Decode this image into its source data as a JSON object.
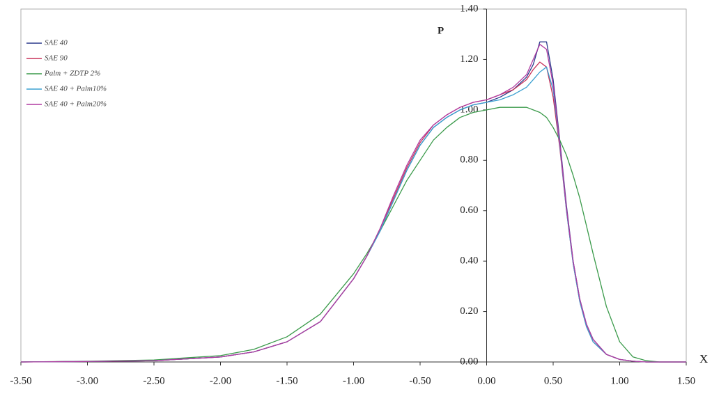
{
  "chart_data": {
    "type": "line",
    "x_label": "X",
    "y_label": "P",
    "xlim": [
      -3.5,
      1.5
    ],
    "ylim": [
      0,
      1.4
    ],
    "xticks": [
      {
        "value": -3.5,
        "label": "-3.50"
      },
      {
        "value": -3,
        "label": "-3.00"
      },
      {
        "value": -2.5,
        "label": "-2.50"
      },
      {
        "value": -2,
        "label": "-2.00"
      },
      {
        "value": -1.5,
        "label": "-1.50"
      },
      {
        "value": -1,
        "label": "-1.00"
      },
      {
        "value": -0.5,
        "label": "-0.50"
      },
      {
        "value": 0,
        "label": "0.00"
      },
      {
        "value": 0.5,
        "label": "0.50"
      },
      {
        "value": 1,
        "label": "1.00"
      },
      {
        "value": 1.5,
        "label": "1.50"
      }
    ],
    "yticks": [
      {
        "value": 0,
        "label": "0.00"
      },
      {
        "value": 0.2,
        "label": "0.20"
      },
      {
        "value": 0.4,
        "label": "0.40"
      },
      {
        "value": 0.6,
        "label": "0.60"
      },
      {
        "value": 0.8,
        "label": "0.80"
      },
      {
        "value": 1,
        "label": "1.00"
      },
      {
        "value": 1.2,
        "label": "1.20"
      },
      {
        "value": 1.4,
        "label": "1.40"
      }
    ],
    "legend": "top-left",
    "x": [
      -3.5,
      -3.0,
      -2.5,
      -2.0,
      -1.75,
      -1.5,
      -1.25,
      -1.0,
      -0.9,
      -0.8,
      -0.7,
      -0.6,
      -0.5,
      -0.4,
      -0.3,
      -0.2,
      -0.1,
      0,
      0.1,
      0.2,
      0.3,
      0.35,
      0.4,
      0.45,
      0.5,
      0.55,
      0.6,
      0.65,
      0.7,
      0.75,
      0.8,
      0.9,
      1.0,
      1.1,
      1.2,
      1.3,
      1.5
    ],
    "series": [
      {
        "name": "SAE 40",
        "color": "#2b3a8c",
        "values": [
          0,
          0.002,
          0.005,
          0.02,
          0.04,
          0.08,
          0.16,
          0.33,
          0.42,
          0.52,
          0.64,
          0.76,
          0.86,
          0.93,
          0.97,
          1.0,
          1.02,
          1.03,
          1.05,
          1.08,
          1.13,
          1.18,
          1.27,
          1.27,
          1.12,
          0.88,
          0.62,
          0.4,
          0.25,
          0.15,
          0.09,
          0.03,
          0.01,
          0.003,
          0,
          0,
          0
        ]
      },
      {
        "name": "SAE 90",
        "color": "#c8325a",
        "values": [
          0,
          0.002,
          0.005,
          0.02,
          0.04,
          0.08,
          0.16,
          0.33,
          0.42,
          0.53,
          0.65,
          0.77,
          0.87,
          0.94,
          0.98,
          1.01,
          1.03,
          1.04,
          1.06,
          1.08,
          1.12,
          1.16,
          1.19,
          1.17,
          1.05,
          0.85,
          0.6,
          0.39,
          0.24,
          0.14,
          0.08,
          0.03,
          0.01,
          0.003,
          0,
          0,
          0
        ]
      },
      {
        "name": "Palm + ZDTP 2%",
        "color": "#3a9a4a",
        "values": [
          0,
          0.003,
          0.008,
          0.025,
          0.05,
          0.1,
          0.19,
          0.35,
          0.43,
          0.52,
          0.62,
          0.72,
          0.8,
          0.88,
          0.93,
          0.97,
          0.99,
          1.0,
          1.01,
          1.01,
          1.01,
          1.0,
          0.99,
          0.97,
          0.93,
          0.88,
          0.82,
          0.74,
          0.65,
          0.54,
          0.43,
          0.22,
          0.08,
          0.02,
          0.005,
          0,
          0
        ]
      },
      {
        "name": "SAE 40 + Palm10%",
        "color": "#3aa0d0",
        "values": [
          0,
          0.002,
          0.005,
          0.02,
          0.04,
          0.08,
          0.16,
          0.33,
          0.42,
          0.52,
          0.64,
          0.76,
          0.86,
          0.93,
          0.97,
          1.0,
          1.02,
          1.03,
          1.04,
          1.06,
          1.09,
          1.12,
          1.15,
          1.17,
          1.08,
          0.86,
          0.6,
          0.39,
          0.24,
          0.14,
          0.08,
          0.03,
          0.01,
          0.003,
          0,
          0,
          0
        ]
      },
      {
        "name": "SAE 40 + Palm20%",
        "color": "#b03aa0",
        "values": [
          0,
          0.002,
          0.005,
          0.02,
          0.04,
          0.08,
          0.16,
          0.33,
          0.42,
          0.53,
          0.66,
          0.78,
          0.88,
          0.94,
          0.98,
          1.01,
          1.03,
          1.04,
          1.06,
          1.09,
          1.14,
          1.2,
          1.26,
          1.24,
          1.1,
          0.87,
          0.61,
          0.4,
          0.25,
          0.15,
          0.09,
          0.03,
          0.01,
          0.003,
          0,
          0,
          0
        ]
      }
    ]
  }
}
